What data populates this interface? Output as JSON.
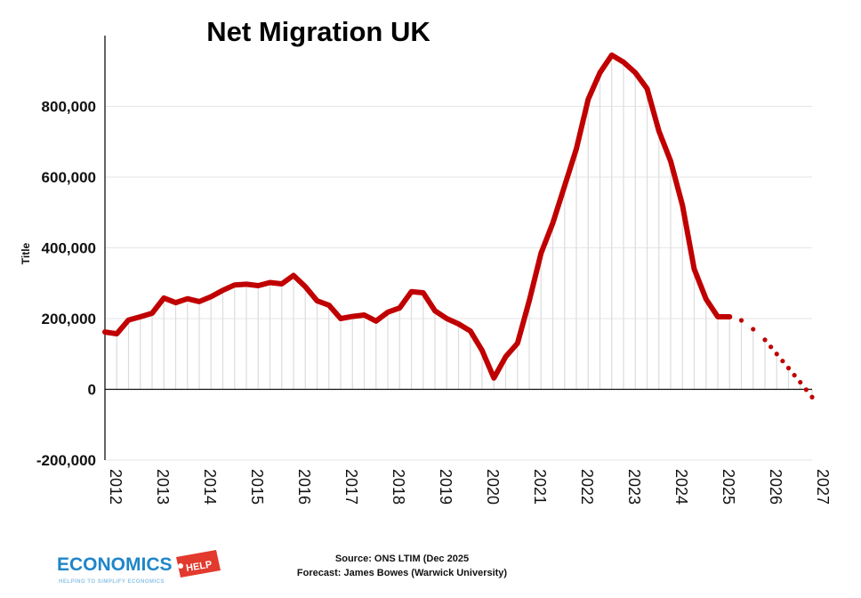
{
  "chart_data": {
    "type": "line",
    "title": "Net Migration UK",
    "ylabel": "Title",
    "xlabel": "",
    "ylim": [
      -200000,
      1000000
    ],
    "xlim": [
      2012,
      2027
    ],
    "yticks": [
      -200000,
      0,
      200000,
      400000,
      600000,
      800000
    ],
    "ytick_labels": [
      "-200,000",
      "0",
      "200,000",
      "400,000",
      "600,000",
      "800,000"
    ],
    "xticks": [
      2012,
      2013,
      2014,
      2015,
      2016,
      2017,
      2018,
      2019,
      2020,
      2021,
      2022,
      2023,
      2024,
      2025,
      2026,
      2027
    ],
    "xtick_labels": [
      "2012",
      "2013",
      "2014",
      "2015",
      "2016",
      "2017",
      "2018",
      "2019",
      "2020",
      "2021",
      "2022",
      "2023",
      "2024",
      "2025",
      "2026",
      "2027"
    ],
    "grid": true,
    "series": [
      {
        "style": "solid",
        "color": "#c00000",
        "x": [
          2012.0,
          2012.25,
          2012.5,
          2012.75,
          2013.0,
          2013.25,
          2013.5,
          2013.75,
          2014.0,
          2014.25,
          2014.5,
          2014.75,
          2015.0,
          2015.25,
          2015.5,
          2015.75,
          2016.0,
          2016.25,
          2016.5,
          2016.75,
          2017.0,
          2017.25,
          2017.5,
          2017.75,
          2018.0,
          2018.25,
          2018.5,
          2018.75,
          2019.0,
          2019.25,
          2019.5,
          2019.75,
          2020.0,
          2020.25,
          2020.5,
          2020.75,
          2021.0,
          2021.25,
          2021.5,
          2021.75,
          2022.0,
          2022.25,
          2022.5,
          2022.75,
          2023.0,
          2023.25,
          2023.5,
          2023.75,
          2024.0,
          2024.25,
          2024.5,
          2024.75,
          2025.0,
          2025.25
        ],
        "y": [
          162000,
          157000,
          196000,
          205000,
          215000,
          258000,
          245000,
          256000,
          248000,
          262000,
          280000,
          295000,
          297000,
          293000,
          302000,
          298000,
          322000,
          290000,
          250000,
          238000,
          200000,
          206000,
          210000,
          193000,
          218000,
          230000,
          276000,
          273000,
          222000,
          200000,
          185000,
          165000,
          110000,
          32000,
          92000,
          130000,
          250000,
          385000,
          470000,
          575000,
          680000,
          820000,
          895000,
          945000,
          925000,
          895000,
          850000,
          730000,
          645000,
          520000,
          340000,
          255000,
          205000,
          205000
        ]
      },
      {
        "style": "dotted",
        "color": "#c00000",
        "x": [
          2025.25,
          2025.5,
          2025.75,
          2026.0,
          2026.25,
          2026.5,
          2026.75,
          2027.0
        ],
        "y": [
          205000,
          195000,
          170000,
          140000,
          100000,
          60000,
          20000,
          -22000
        ]
      }
    ],
    "source_lines": [
      "Source: ONS LTIM (Dec 2025",
      "Forecast: James Bowes (Warwick University)"
    ]
  },
  "logo": {
    "main": "ECONOMICS",
    "help": "HELP",
    "tagline": "HELPING TO SIMPLIFY ECONOMICS"
  },
  "colors": {
    "line": "#c00000",
    "grid": "#e6e6e6",
    "axis": "#111111",
    "logo_blue": "#1f86c9",
    "logo_red": "#e23a2e"
  }
}
